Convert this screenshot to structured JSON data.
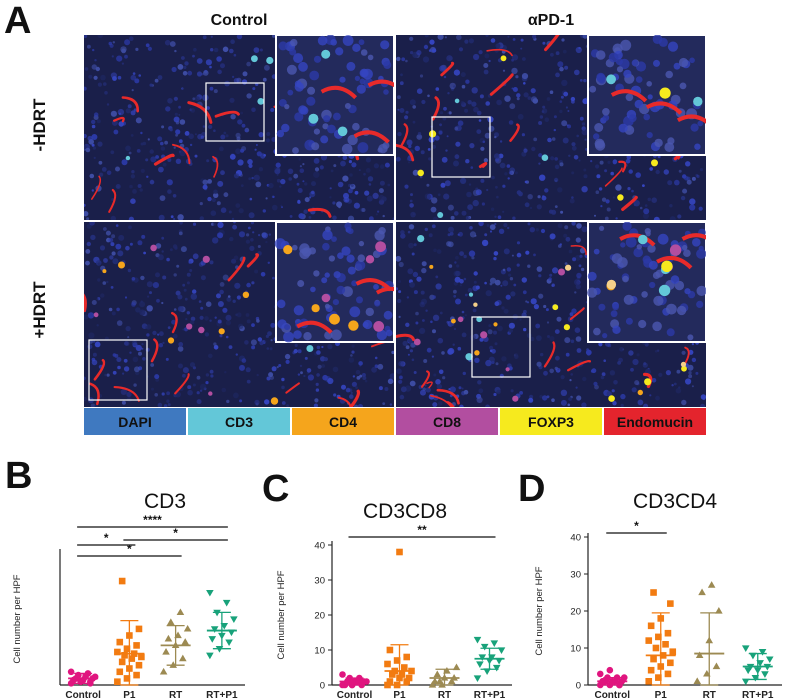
{
  "panel_a": {
    "letter": "A",
    "columns": [
      "Control",
      "αPD-1"
    ],
    "rows": [
      "-HDRT",
      "+HDRT"
    ],
    "legend": [
      {
        "label": "DAPI",
        "color": "#3f79c0"
      },
      {
        "label": "CD3",
        "color": "#63c7d8"
      },
      {
        "label": "CD4",
        "color": "#f5a51c"
      },
      {
        "label": "CD8",
        "color": "#b24ea0"
      },
      {
        "label": "FOXP3",
        "color": "#f6ea1e"
      },
      {
        "label": "Endomucin",
        "color": "#e4242d"
      }
    ]
  },
  "colors": {
    "control": "#e0157f",
    "p1": "#f27b11",
    "rt": "#9c8a52",
    "rtp1": "#18a27a"
  },
  "chart_data": [
    {
      "panel": "B",
      "type": "scatter",
      "title": "CD3",
      "ylabel": "Cell number per HPF",
      "categories": [
        "Control",
        "P1",
        "RT",
        "RT+P1"
      ],
      "ylim": [
        0,
        80
      ],
      "y_ticks": [],
      "series": [
        {
          "category": "Control",
          "marker": "circle",
          "mean": 4,
          "sd": 3,
          "values": [
            1,
            2,
            2,
            3,
            3,
            4,
            4,
            5,
            5,
            6,
            7,
            8,
            2,
            1,
            3
          ]
        },
        {
          "category": "P1",
          "marker": "square",
          "mean": 19,
          "sd": 20,
          "values": [
            2,
            4,
            6,
            8,
            10,
            12,
            14,
            16,
            17,
            18,
            19,
            20,
            22,
            24,
            26,
            30,
            34,
            63
          ]
        },
        {
          "category": "RT",
          "marker": "triangle-up",
          "mean": 24,
          "sd": 12,
          "values": [
            8,
            12,
            16,
            20,
            24,
            26,
            28,
            30,
            34,
            38,
            44
          ]
        },
        {
          "category": "RT+P1",
          "marker": "triangle-down",
          "mean": 33,
          "sd": 11,
          "values": [
            18,
            22,
            26,
            28,
            30,
            32,
            34,
            36,
            40,
            44,
            50,
            56
          ]
        }
      ],
      "significance": [
        {
          "from": 0,
          "to": 3,
          "label": "****"
        },
        {
          "from": 0,
          "to": 1,
          "label": "*"
        },
        {
          "from": 0,
          "to": 2,
          "label": "*"
        },
        {
          "from": 1,
          "to": 3,
          "label": "*"
        }
      ]
    },
    {
      "panel": "C",
      "type": "scatter",
      "title": "CD3CD8",
      "ylabel": "Cell number per HPF",
      "categories": [
        "Control",
        "P1",
        "RT",
        "RT+P1"
      ],
      "ylim": [
        0,
        40
      ],
      "y_ticks": [
        0,
        10,
        20,
        30,
        40
      ],
      "series": [
        {
          "category": "Control",
          "marker": "circle",
          "mean": 1,
          "sd": 1,
          "values": [
            0,
            0,
            0,
            0,
            1,
            1,
            1,
            1,
            1,
            2,
            2,
            3,
            0,
            1
          ]
        },
        {
          "category": "P1",
          "marker": "square",
          "mean": 4,
          "sd": 7.5,
          "values": [
            0,
            0,
            1,
            1,
            2,
            2,
            3,
            3,
            4,
            4,
            5,
            6,
            7,
            8,
            10,
            38
          ]
        },
        {
          "category": "RT",
          "marker": "triangle-up",
          "mean": 2,
          "sd": 2.5,
          "values": [
            0,
            0,
            1,
            1,
            2,
            2,
            3,
            4,
            5,
            1
          ]
        },
        {
          "category": "RT+P1",
          "marker": "triangle-down",
          "mean": 7.5,
          "sd": 3,
          "values": [
            2,
            4,
            5,
            6,
            7,
            7,
            8,
            8,
            10,
            11,
            12,
            13
          ]
        }
      ],
      "significance": [
        {
          "from": 0,
          "to": 3,
          "label": "**"
        }
      ]
    },
    {
      "panel": "D",
      "type": "scatter",
      "title": "CD3CD4",
      "ylabel": "Cell number per HPF",
      "categories": [
        "Control",
        "P1",
        "RT",
        "RT+P1"
      ],
      "ylim": [
        0,
        40
      ],
      "y_ticks": [
        0,
        10,
        20,
        30,
        40
      ],
      "series": [
        {
          "category": "Control",
          "marker": "circle",
          "mean": 1,
          "sd": 1,
          "values": [
            0,
            0,
            0,
            1,
            1,
            1,
            1,
            1,
            2,
            2,
            2,
            3,
            4,
            0,
            1
          ]
        },
        {
          "category": "P1",
          "marker": "square",
          "mean": 8,
          "sd": 11.5,
          "values": [
            1,
            2,
            3,
            4,
            5,
            6,
            7,
            8,
            9,
            10,
            11,
            12,
            13,
            14,
            16,
            18,
            22,
            25
          ]
        },
        {
          "category": "RT",
          "marker": "triangle-up",
          "mean": 8.5,
          "sd": 11,
          "values": [
            1,
            3,
            5,
            8,
            12,
            20,
            25,
            27
          ]
        },
        {
          "category": "RT+P1",
          "marker": "triangle-down",
          "mean": 5,
          "sd": 3.5,
          "values": [
            1,
            2,
            3,
            4,
            4,
            5,
            5,
            6,
            7,
            8,
            9,
            10
          ]
        }
      ],
      "significance": [
        {
          "from": 0,
          "to": 1,
          "label": "*"
        }
      ]
    }
  ]
}
